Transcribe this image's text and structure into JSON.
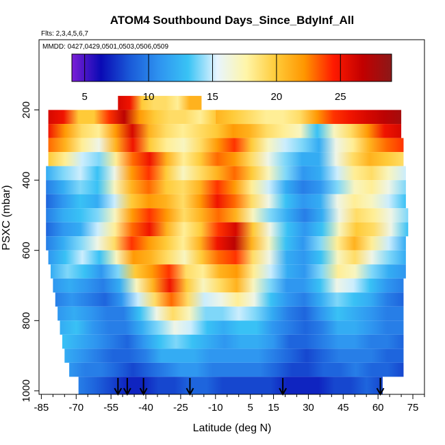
{
  "chart_data": {
    "type": "heatmap",
    "title": "ATOM4 Southbound Days_Since_BdyInf_All",
    "subtitle_flights": "Flts: 2,3,4,5,6,7",
    "subtitle_dates": "MMDD: 0427,0429,0501,0503,0506,0509",
    "xlabel": "Latitude (deg N)",
    "ylabel": "PSXC (mbar)",
    "xlim": [
      -86,
      80
    ],
    "ylim": [
      1010,
      0
    ],
    "x_major_ticks": [
      -85,
      -70,
      -55,
      -40,
      -25,
      -10,
      5,
      15,
      30,
      45,
      60,
      75
    ],
    "x_minor_ticks": [
      -80,
      -75,
      -65,
      -60,
      -50,
      -45,
      -35,
      -30,
      -20,
      -15,
      -5,
      0,
      10,
      20,
      25,
      35,
      40,
      50,
      55,
      65,
      70,
      80
    ],
    "y_ticks": [
      200,
      400,
      600,
      800,
      1000
    ],
    "colorbar": {
      "min": 4,
      "max": 29,
      "ticks": [
        5,
        10,
        15,
        20,
        25
      ],
      "stops": [
        "#7b1fd6",
        "#0a0ab4",
        "#1a5ad8",
        "#2e93f0",
        "#39c3f5",
        "#e7f5ff",
        "#fff5a8",
        "#ffcc3a",
        "#ff9600",
        "#ff1a00",
        "#c20000",
        "#8c1818"
      ]
    },
    "flight_drop_latitudes": [
      -52,
      -48,
      -41,
      -21,
      19,
      61
    ],
    "layers": [
      {
        "p": [
          160,
          200
        ],
        "lat": [
          -52,
          -16
        ],
        "values": [
          26,
          25,
          20,
          19,
          19,
          18,
          21,
          21
        ]
      },
      {
        "p": [
          200,
          240
        ],
        "lat": [
          -82,
          -10
        ],
        "values": [
          26,
          25,
          20,
          20,
          24,
          27,
          22,
          20,
          19,
          19,
          18,
          20
        ]
      },
      {
        "p": [
          200,
          240
        ],
        "lat": [
          -10,
          70
        ],
        "values": [
          21,
          20,
          19,
          18,
          18,
          19,
          22,
          24,
          25,
          26,
          27,
          28
        ]
      },
      {
        "p": [
          240,
          280
        ],
        "lat": [
          -82,
          70
        ],
        "values": [
          25,
          22,
          19,
          18,
          22,
          26,
          21,
          19,
          18,
          19,
          20,
          22,
          21,
          19,
          18,
          17,
          13,
          17,
          19,
          22,
          25,
          26
        ]
      },
      {
        "p": [
          280,
          320
        ],
        "lat": [
          -82,
          71
        ],
        "values": [
          23,
          21,
          18,
          16,
          21,
          25,
          20,
          18,
          17,
          19,
          22,
          24,
          20,
          17,
          15,
          14,
          12,
          16,
          18,
          21,
          23,
          24
        ]
      },
      {
        "p": [
          320,
          360
        ],
        "lat": [
          -82,
          71
        ],
        "values": [
          20,
          18,
          15,
          14,
          18,
          23,
          25,
          21,
          18,
          20,
          23,
          22,
          19,
          16,
          14,
          12,
          12,
          16,
          19,
          21,
          20,
          19
        ]
      },
      {
        "p": [
          360,
          400
        ],
        "lat": [
          -83,
          72
        ],
        "values": [
          12,
          14,
          15,
          13,
          16,
          22,
          24,
          20,
          17,
          19,
          21,
          23,
          20,
          17,
          14,
          11,
          12,
          15,
          18,
          19,
          17,
          15
        ]
      },
      {
        "p": [
          400,
          440
        ],
        "lat": [
          -83,
          72
        ],
        "values": [
          10,
          12,
          14,
          13,
          17,
          21,
          23,
          20,
          19,
          21,
          24,
          22,
          18,
          15,
          12,
          10,
          11,
          14,
          17,
          18,
          16,
          14
        ]
      },
      {
        "p": [
          440,
          480
        ],
        "lat": [
          -83,
          72
        ],
        "values": [
          9,
          11,
          13,
          12,
          15,
          20,
          22,
          21,
          19,
          22,
          25,
          23,
          19,
          16,
          13,
          11,
          12,
          16,
          18,
          17,
          15,
          13
        ]
      },
      {
        "p": [
          480,
          520
        ],
        "lat": [
          -83,
          73
        ],
        "values": [
          10,
          12,
          13,
          14,
          17,
          22,
          24,
          22,
          19,
          21,
          23,
          21,
          17,
          14,
          12,
          10,
          12,
          16,
          19,
          18,
          16,
          14
        ]
      },
      {
        "p": [
          520,
          560
        ],
        "lat": [
          -83,
          73
        ],
        "values": [
          9,
          11,
          12,
          15,
          18,
          23,
          25,
          21,
          18,
          20,
          24,
          26,
          20,
          16,
          13,
          11,
          13,
          17,
          20,
          19,
          16,
          13
        ]
      },
      {
        "p": [
          560,
          600
        ],
        "lat": [
          -83,
          72
        ],
        "values": [
          10,
          12,
          14,
          16,
          19,
          24,
          22,
          20,
          18,
          21,
          25,
          27,
          21,
          17,
          13,
          11,
          14,
          18,
          21,
          18,
          15,
          12
        ]
      },
      {
        "p": [
          600,
          640
        ],
        "lat": [
          -82,
          72
        ],
        "values": [
          11,
          13,
          15,
          13,
          17,
          22,
          21,
          19,
          17,
          20,
          23,
          24,
          19,
          16,
          12,
          11,
          13,
          17,
          19,
          16,
          14,
          12
        ]
      },
      {
        "p": [
          640,
          680
        ],
        "lat": [
          -81,
          72
        ],
        "values": [
          12,
          14,
          13,
          11,
          14,
          20,
          22,
          24,
          19,
          18,
          21,
          22,
          18,
          15,
          12,
          11,
          14,
          18,
          17,
          14,
          12,
          11
        ]
      },
      {
        "p": [
          680,
          720
        ],
        "lat": [
          -80,
          71
        ],
        "values": [
          11,
          12,
          11,
          10,
          12,
          17,
          21,
          25,
          20,
          17,
          19,
          21,
          17,
          14,
          11,
          11,
          13,
          16,
          15,
          13,
          11,
          10
        ]
      },
      {
        "p": [
          720,
          760
        ],
        "lat": [
          -79,
          71
        ],
        "values": [
          10,
          11,
          10,
          9,
          11,
          15,
          19,
          23,
          19,
          15,
          16,
          18,
          16,
          13,
          11,
          10,
          12,
          14,
          13,
          12,
          10,
          9
        ]
      },
      {
        "p": [
          760,
          800
        ],
        "lat": [
          -78,
          71
        ],
        "values": [
          11,
          12,
          11,
          10,
          10,
          13,
          16,
          19,
          17,
          14,
          14,
          15,
          14,
          12,
          10,
          9,
          11,
          13,
          12,
          11,
          10,
          10
        ]
      },
      {
        "p": [
          800,
          840
        ],
        "lat": [
          -77,
          71
        ],
        "values": [
          12,
          13,
          11,
          10,
          10,
          12,
          14,
          16,
          15,
          13,
          12,
          13,
          13,
          11,
          10,
          9,
          10,
          12,
          12,
          11,
          10,
          10
        ]
      },
      {
        "p": [
          840,
          880
        ],
        "lat": [
          -76,
          71
        ],
        "values": [
          13,
          12,
          11,
          10,
          9,
          11,
          13,
          14,
          13,
          12,
          11,
          12,
          12,
          11,
          9,
          9,
          10,
          11,
          11,
          10,
          10,
          9
        ]
      },
      {
        "p": [
          880,
          920
        ],
        "lat": [
          -75,
          71
        ],
        "values": [
          12,
          11,
          10,
          9,
          9,
          10,
          12,
          12,
          12,
          11,
          11,
          11,
          11,
          10,
          9,
          8,
          9,
          10,
          10,
          10,
          9,
          9
        ]
      },
      {
        "p": [
          920,
          960
        ],
        "lat": [
          -73,
          71
        ],
        "values": [
          11,
          10,
          10,
          9,
          8,
          9,
          10,
          11,
          11,
          10,
          10,
          10,
          10,
          9,
          8,
          8,
          9,
          9,
          10,
          9,
          9,
          8
        ]
      },
      {
        "p": [
          960,
          1010
        ],
        "lat": [
          -69,
          62
        ],
        "values": [
          10,
          9,
          8,
          7,
          7,
          8,
          8,
          9,
          9,
          8,
          8,
          8,
          8,
          7,
          7,
          7,
          8,
          8,
          9,
          8
        ]
      }
    ]
  }
}
